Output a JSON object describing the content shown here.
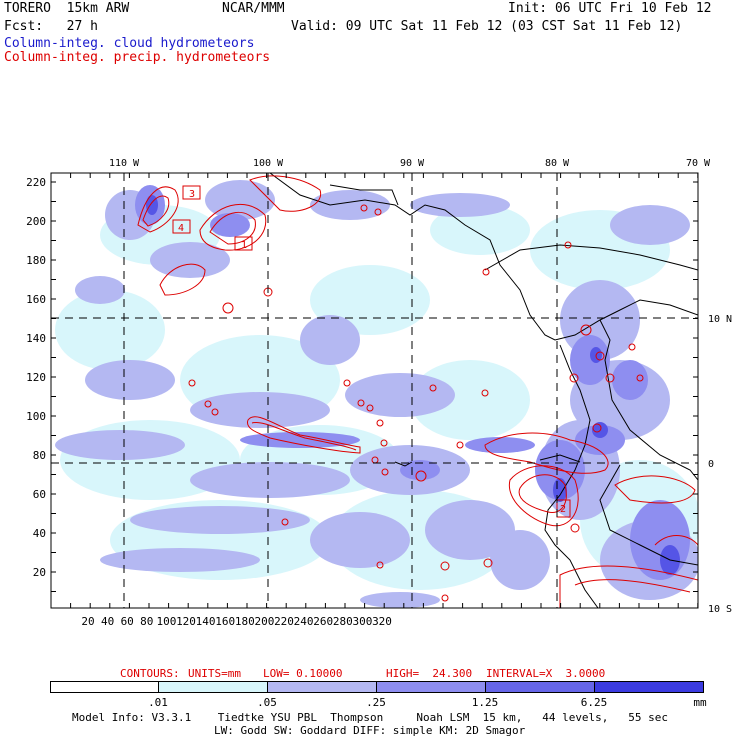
{
  "header": {
    "model": "TORERO  15km ARW",
    "center": "NCAR/MMM",
    "init": "Init: 06 UTC Fri 10 Feb 12",
    "fcst": "Fcst:   27 h",
    "valid": "Valid: 09 UTC Sat 11 Feb 12 (03 CST Sat 11 Feb 12)",
    "legend_cloud": "Column-integ. cloud hydrometeors",
    "legend_precip": "Column-integ. precip. hydrometeors"
  },
  "map": {
    "lon_labels": [
      "110 W",
      "100 W",
      "90 W",
      "80 W",
      "70 W"
    ],
    "lat_labels": [
      "10 N",
      "0",
      "10 S"
    ],
    "y_ticks": [
      "220",
      "200",
      "180",
      "160",
      "140",
      "120",
      "100",
      "80",
      "60",
      "40",
      "20"
    ],
    "x_ticks": [
      "20",
      "40",
      "60",
      "80",
      "100",
      "120",
      "140",
      "160",
      "180",
      "200",
      "220",
      "240",
      "260",
      "280",
      "300",
      "320"
    ],
    "box_labels": [
      "3",
      "4",
      "1",
      "2"
    ]
  },
  "contours_line": {
    "title": "CONTOURS:",
    "units": "UNITS=mm",
    "low": "LOW= 0.10000",
    "high": "HIGH=  24.300",
    "interval": "INTERVAL=X  3.0000"
  },
  "colorbar": {
    "labels": [
      ".01",
      ".05",
      ".25",
      "1.25",
      "6.25",
      "mm"
    ],
    "colors": [
      "#ffffff",
      "#d8f6fb",
      "#b4b8f2",
      "#8e8ef0",
      "#6666e8",
      "#3b3be0",
      "#1a1ae0"
    ]
  },
  "footer": {
    "line1": "Model Info: V3.3.1    Tiedtke YSU PBL  Thompson     Noah LSM  15 km,   44 levels,   55 sec",
    "line2": "LW: Godd SW: Goddard DIFF: simple KM: 2D Smagor"
  }
}
